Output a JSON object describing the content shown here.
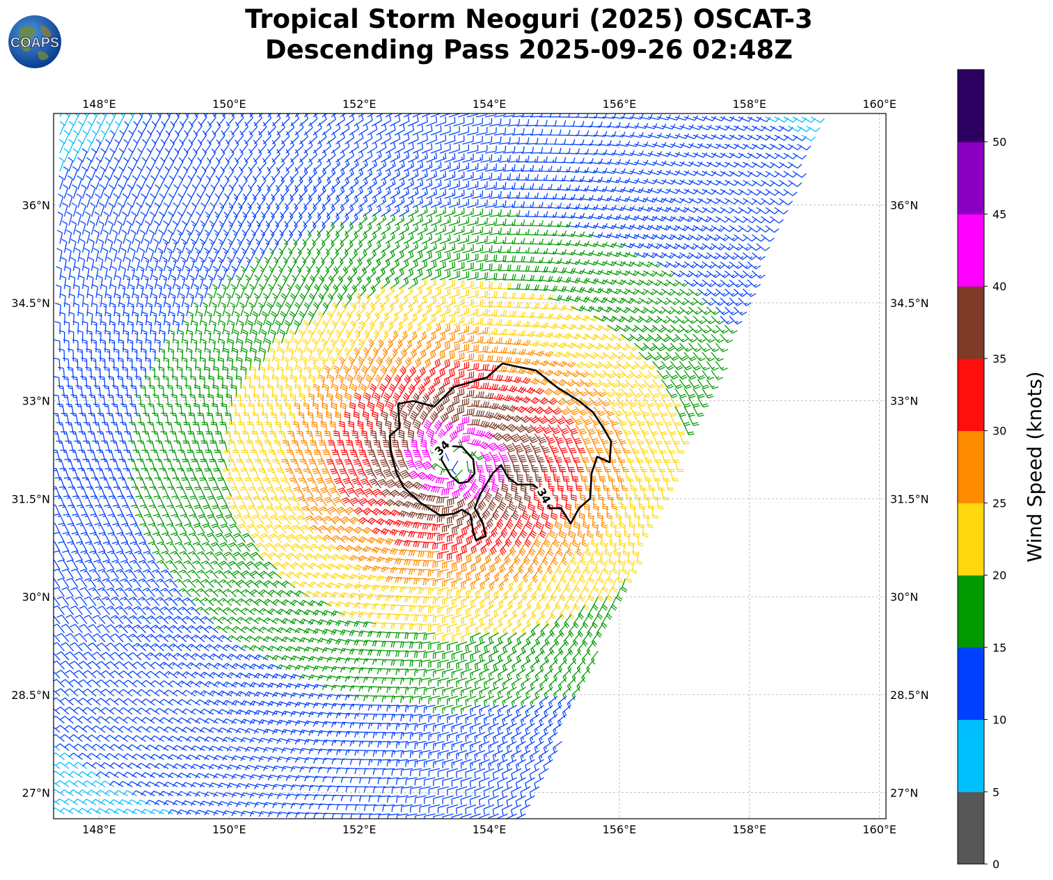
{
  "logo": {
    "text": "COAPS"
  },
  "header": {
    "title_line1": "Tropical Storm Neoguri (2025) OSCAT-3",
    "title_line2": "Descending Pass 2025-09-26 02:48Z"
  },
  "chart_data": {
    "type": "wind_barbs",
    "title": "Tropical Storm Neoguri (2025) OSCAT-3 Descending Pass 2025-09-26 02:48Z",
    "x_ticks": [
      "148°E",
      "150°E",
      "152°E",
      "154°E",
      "156°E",
      "158°E",
      "160°E"
    ],
    "x_tick_values": [
      148,
      150,
      152,
      154,
      156,
      158,
      160
    ],
    "y_ticks": [
      "27°N",
      "28.5°N",
      "30°N",
      "31.5°N",
      "33°N",
      "34.5°N",
      "36°N"
    ],
    "y_tick_values": [
      27,
      28.5,
      30,
      31.5,
      33,
      34.5,
      36
    ],
    "xlim": [
      147.3,
      160.1
    ],
    "ylim": [
      26.6,
      37.4
    ],
    "grid": true,
    "storm_center": {
      "lon": 153.5,
      "lat": 32.1
    },
    "contour_label": "34",
    "contour_level_kt": 34,
    "colorbar": {
      "label": "Wind Speed (knots)",
      "tick_labels": [
        "0",
        "5",
        "10",
        "15",
        "20",
        "25",
        "30",
        "35",
        "40",
        "45",
        "50"
      ],
      "bins": [
        {
          "min": 0,
          "max": 5,
          "color": "#575757"
        },
        {
          "min": 5,
          "max": 10,
          "color": "#00bfff"
        },
        {
          "min": 10,
          "max": 15,
          "color": "#0040ff"
        },
        {
          "min": 15,
          "max": 20,
          "color": "#009900"
        },
        {
          "min": 20,
          "max": 25,
          "color": "#ffd70e"
        },
        {
          "min": 25,
          "max": 30,
          "color": "#ff8c00"
        },
        {
          "min": 30,
          "max": 35,
          "color": "#ff0e0e"
        },
        {
          "min": 35,
          "max": 40,
          "color": "#7f3a28"
        },
        {
          "min": 40,
          "max": 45,
          "color": "#ff00ff"
        },
        {
          "min": 45,
          "max": 50,
          "color": "#8b00c0"
        },
        {
          "min": 50,
          "max": 55,
          "color": "#2c0060"
        }
      ]
    }
  }
}
